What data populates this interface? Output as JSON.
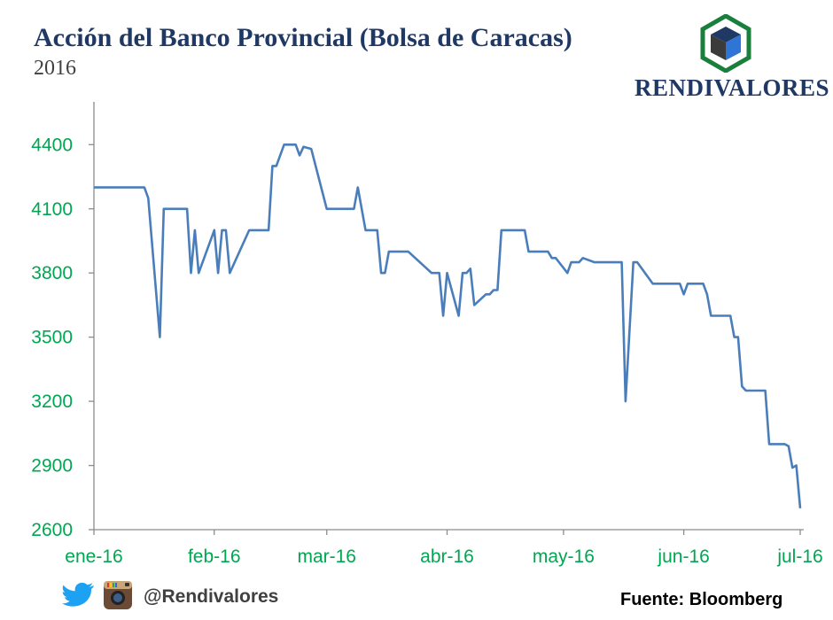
{
  "header": {
    "title": "Acción del Banco Provincial (Bolsa de Caracas)",
    "subtitle": "2016"
  },
  "brand": {
    "name": "RENDIVALORES",
    "logo_icon": "cube-hexagon-logo-icon",
    "colors": {
      "hex": "#1a7f3c",
      "cube_top": "#1f3864",
      "cube_left": "#3b3b3b",
      "cube_right": "#2e75d6"
    }
  },
  "footer": {
    "handle": "@Rendivalores",
    "source": "Fuente: Bloomberg",
    "icons": [
      "twitter-bird-icon",
      "instagram-camera-icon"
    ]
  },
  "chart_data": {
    "type": "line",
    "title": "Acción del Banco Provincial (Bolsa de Caracas)",
    "subtitle": "2016",
    "xlabel": "",
    "ylabel": "",
    "y_ticks": [
      2600,
      2900,
      3200,
      3500,
      3800,
      4100,
      4400
    ],
    "ylim": [
      2600,
      4600
    ],
    "x_ticks": [
      {
        "label": "ene-16",
        "date": "2016-01-01"
      },
      {
        "label": "feb-16",
        "date": "2016-02-01"
      },
      {
        "label": "mar-16",
        "date": "2016-03-01"
      },
      {
        "label": "abr-16",
        "date": "2016-04-01"
      },
      {
        "label": "may-16",
        "date": "2016-05-01"
      },
      {
        "label": "jun-16",
        "date": "2016-06-01"
      },
      {
        "label": "jul-16",
        "date": "2016-07-01"
      }
    ],
    "xlim": [
      "2016-01-01",
      "2016-07-01"
    ],
    "grid": false,
    "line_color": "#4a7ebb",
    "label_color": "#00a651",
    "series": [
      {
        "name": "",
        "points": [
          [
            "2016-01-01",
            4200
          ],
          [
            "2016-01-14",
            4200
          ],
          [
            "2016-01-15",
            4150
          ],
          [
            "2016-01-18",
            3500
          ],
          [
            "2016-01-19",
            4100
          ],
          [
            "2016-01-25",
            4100
          ],
          [
            "2016-01-26",
            3800
          ],
          [
            "2016-01-27",
            4000
          ],
          [
            "2016-01-28",
            3800
          ],
          [
            "2016-02-01",
            4000
          ],
          [
            "2016-02-02",
            3800
          ],
          [
            "2016-02-03",
            4000
          ],
          [
            "2016-02-04",
            4000
          ],
          [
            "2016-02-05",
            3800
          ],
          [
            "2016-02-10",
            4000
          ],
          [
            "2016-02-15",
            4000
          ],
          [
            "2016-02-16",
            4300
          ],
          [
            "2016-02-17",
            4300
          ],
          [
            "2016-02-19",
            4400
          ],
          [
            "2016-02-22",
            4400
          ],
          [
            "2016-02-23",
            4350
          ],
          [
            "2016-02-24",
            4390
          ],
          [
            "2016-02-26",
            4380
          ],
          [
            "2016-03-01",
            4100
          ],
          [
            "2016-03-08",
            4100
          ],
          [
            "2016-03-09",
            4200
          ],
          [
            "2016-03-11",
            4000
          ],
          [
            "2016-03-14",
            4000
          ],
          [
            "2016-03-15",
            3800
          ],
          [
            "2016-03-16",
            3800
          ],
          [
            "2016-03-17",
            3900
          ],
          [
            "2016-03-22",
            3900
          ],
          [
            "2016-03-28",
            3800
          ],
          [
            "2016-03-30",
            3800
          ],
          [
            "2016-03-31",
            3600
          ],
          [
            "2016-04-01",
            3800
          ],
          [
            "2016-04-04",
            3600
          ],
          [
            "2016-04-05",
            3800
          ],
          [
            "2016-04-06",
            3800
          ],
          [
            "2016-04-07",
            3820
          ],
          [
            "2016-04-08",
            3650
          ],
          [
            "2016-04-11",
            3700
          ],
          [
            "2016-04-12",
            3700
          ],
          [
            "2016-04-13",
            3720
          ],
          [
            "2016-04-14",
            3720
          ],
          [
            "2016-04-15",
            4000
          ],
          [
            "2016-04-21",
            4000
          ],
          [
            "2016-04-22",
            3900
          ],
          [
            "2016-04-27",
            3900
          ],
          [
            "2016-04-28",
            3870
          ],
          [
            "2016-04-29",
            3870
          ],
          [
            "2016-05-02",
            3800
          ],
          [
            "2016-05-03",
            3850
          ],
          [
            "2016-05-05",
            3850
          ],
          [
            "2016-05-06",
            3870
          ],
          [
            "2016-05-09",
            3850
          ],
          [
            "2016-05-16",
            3850
          ],
          [
            "2016-05-17",
            3200
          ],
          [
            "2016-05-19",
            3850
          ],
          [
            "2016-05-20",
            3850
          ],
          [
            "2016-05-24",
            3750
          ],
          [
            "2016-05-31",
            3750
          ],
          [
            "2016-06-01",
            3700
          ],
          [
            "2016-06-02",
            3750
          ],
          [
            "2016-06-06",
            3750
          ],
          [
            "2016-06-07",
            3700
          ],
          [
            "2016-06-08",
            3600
          ],
          [
            "2016-06-13",
            3600
          ],
          [
            "2016-06-14",
            3500
          ],
          [
            "2016-06-15",
            3500
          ],
          [
            "2016-06-16",
            3270
          ],
          [
            "2016-06-17",
            3250
          ],
          [
            "2016-06-22",
            3250
          ],
          [
            "2016-06-23",
            3000
          ],
          [
            "2016-06-27",
            3000
          ],
          [
            "2016-06-28",
            2990
          ],
          [
            "2016-06-29",
            2890
          ],
          [
            "2016-06-30",
            2900
          ],
          [
            "2016-07-01",
            2700
          ]
        ]
      }
    ]
  }
}
